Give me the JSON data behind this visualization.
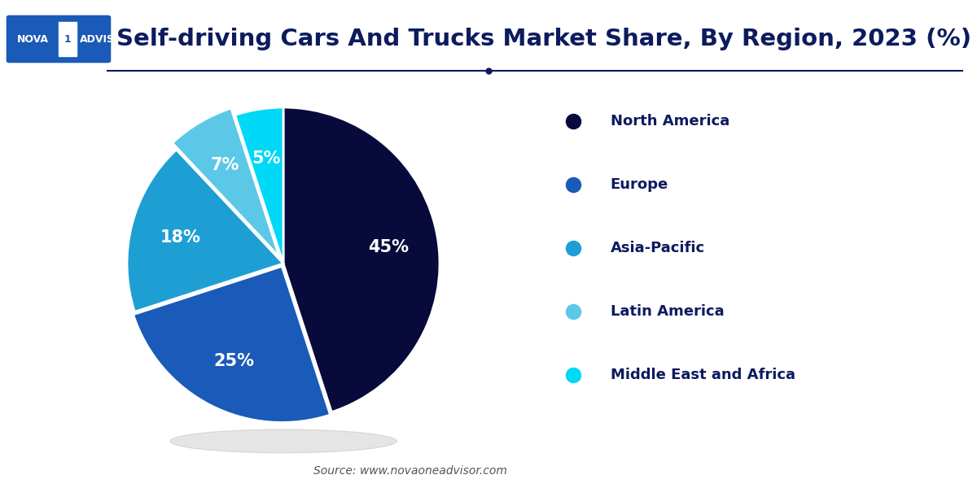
{
  "title": "Self-driving Cars And Trucks Market Share, By Region, 2023 (%)",
  "labels": [
    "North America",
    "Europe",
    "Asia-Pacific",
    "Latin America",
    "Middle East and Africa"
  ],
  "values": [
    45,
    25,
    18,
    7,
    5
  ],
  "colors": [
    "#080a3c",
    "#1a5ab8",
    "#1e9fd4",
    "#5bc8e8",
    "#00d8f8"
  ],
  "explode": [
    0,
    0.02,
    0,
    0.05,
    0
  ],
  "source_text": "Source: www.novaoneadvisor.com",
  "bg_color": "#ffffff",
  "title_color": "#0d1b5e",
  "legend_text_color": "#0d1b5e",
  "label_fontsize": 15,
  "title_fontsize": 21
}
